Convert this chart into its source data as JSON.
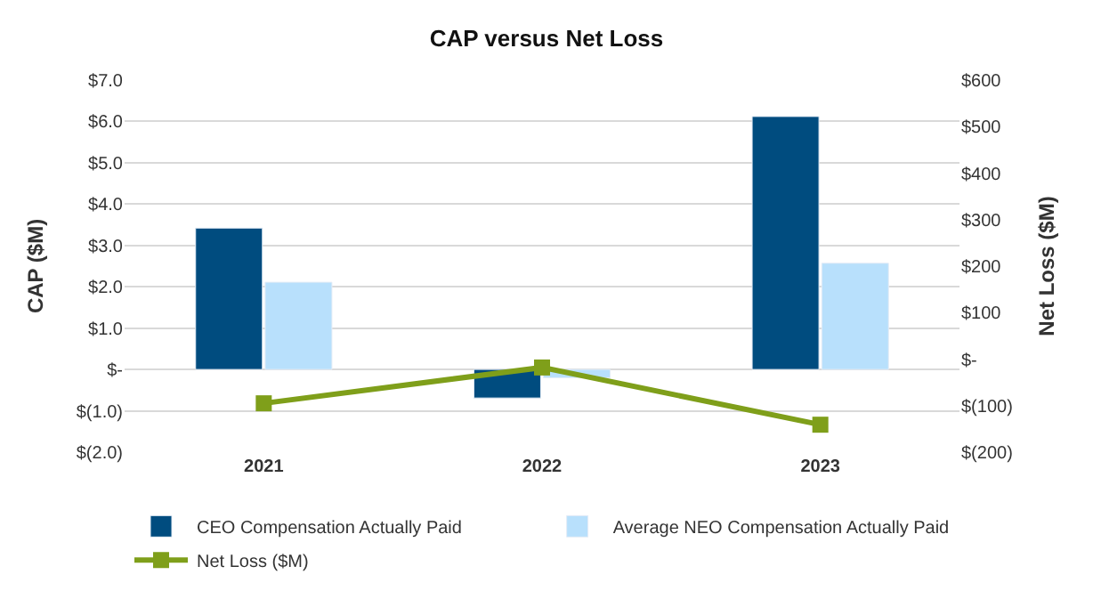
{
  "chart_data": {
    "type": "bar",
    "title": "CAP versus Net Loss",
    "ylabel": "CAP ($M)",
    "y2label": "Net Loss ($M)",
    "categories": [
      "2021",
      "2022",
      "2023"
    ],
    "series": [
      {
        "name": "CEO Compensation Actually Paid",
        "color": "#004c7f",
        "values": [
          3.42,
          -0.69,
          6.12
        ]
      },
      {
        "name": "Average NEO Compensation Actually Paid",
        "color": "#b8e0fc",
        "values": [
          2.11,
          -0.2,
          2.57
        ]
      },
      {
        "name": "Net Loss ($M)",
        "type": "line",
        "axis": "y2",
        "color": "#7f9f1a",
        "marker": "square",
        "values": [
          -95,
          -18,
          -141
        ]
      }
    ],
    "ylim": [
      -2,
      7
    ],
    "yticks": [
      {
        "value": -2,
        "label": "$(2.0)"
      },
      {
        "value": -1,
        "label": "$(1.0)"
      },
      {
        "value": 0,
        "label": "$-"
      },
      {
        "value": 1,
        "label": "$1.0"
      },
      {
        "value": 2,
        "label": "$2.0"
      },
      {
        "value": 3,
        "label": "$3.0"
      },
      {
        "value": 4,
        "label": "$4.0"
      },
      {
        "value": 5,
        "label": "$5.0"
      },
      {
        "value": 6,
        "label": "$6.0"
      },
      {
        "value": 7,
        "label": "$7.0"
      }
    ],
    "y2lim": [
      -200,
      600
    ],
    "y2ticks": [
      {
        "value": -200,
        "label": "$(200)"
      },
      {
        "value": -100,
        "label": "$(100)"
      },
      {
        "value": 0,
        "label": "$-"
      },
      {
        "value": 100,
        "label": "$100"
      },
      {
        "value": 200,
        "label": "$200"
      },
      {
        "value": 300,
        "label": "$300"
      },
      {
        "value": 400,
        "label": "$400"
      },
      {
        "value": 500,
        "label": "$500"
      },
      {
        "value": 600,
        "label": "$600"
      }
    ],
    "grid": "y",
    "legend": "bottom"
  }
}
